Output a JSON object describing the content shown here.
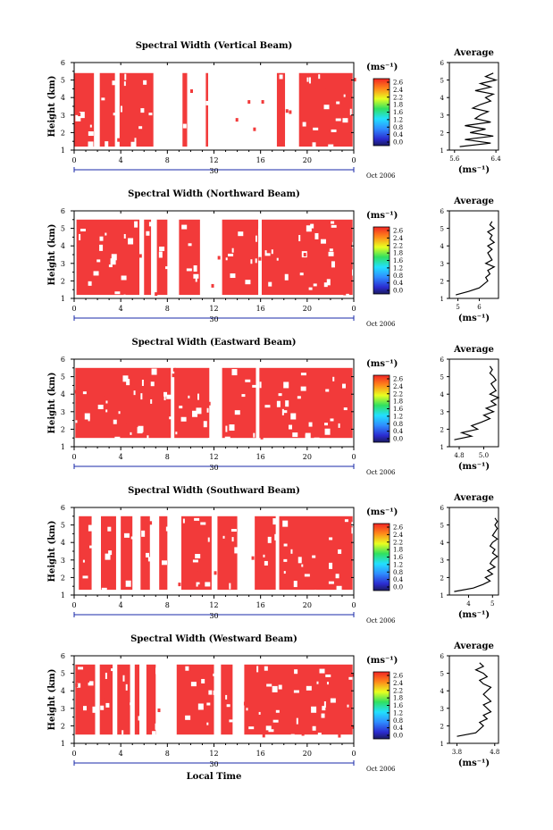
{
  "figure": {
    "xlabel": "Local Time",
    "date_label": "Oct 2006",
    "day_label": "30",
    "colorbar_unit": "(ms⁻¹)",
    "avg_title": "Average",
    "avg_unit": "(ms⁻¹)",
    "ylabel": "Height (km)"
  },
  "colors": {
    "data": "#f23a3a",
    "axis": "#000000",
    "background": "#ffffff",
    "axis_accent": "#1a2aa8"
  },
  "chart_data": [
    {
      "type": "heatmap",
      "title": "Spectral Width (Vertical Beam)",
      "ylabel": "Height (km)",
      "xlabel": "",
      "x_ticks": [
        "0",
        "4",
        "8",
        "12",
        "16",
        "20",
        "0"
      ],
      "y_ticks": [
        "1",
        "2",
        "3",
        "4",
        "5",
        "6"
      ],
      "xlim": [
        0,
        24
      ],
      "ylim": [
        1,
        6
      ],
      "data_height_range": [
        1.2,
        5.4
      ],
      "colorbar": {
        "ticks": [
          "2.6",
          "2.4",
          "2.2",
          "1.8",
          "1.6",
          "1.2",
          "0.8",
          "0.4",
          "0.0"
        ],
        "range": [
          0.0,
          2.6
        ]
      },
      "coverage": [
        [
          0.0,
          1.7
        ],
        [
          2.2,
          3.5
        ],
        [
          3.9,
          6.8
        ],
        [
          9.3,
          9.7
        ],
        [
          11.3,
          11.5
        ],
        [
          17.4,
          18.1
        ],
        [
          19.3,
          23.9
        ]
      ],
      "avg": {
        "xticks": [
          "5.6",
          "6.4"
        ],
        "xlim": [
          5.5,
          6.45
        ],
        "h": [
          1.2,
          1.4,
          1.6,
          1.8,
          2.0,
          2.2,
          2.4,
          2.6,
          2.8,
          3.0,
          3.2,
          3.4,
          3.6,
          3.8,
          4.0,
          4.2,
          4.4,
          4.6,
          4.8,
          5.0,
          5.2,
          5.4
        ],
        "v": [
          5.7,
          6.3,
          5.8,
          6.35,
          5.9,
          6.2,
          5.8,
          6.3,
          6.0,
          6.1,
          6.25,
          5.95,
          6.1,
          6.3,
          6.2,
          6.35,
          6.0,
          6.3,
          6.1,
          6.4,
          6.2,
          6.35
        ]
      }
    },
    {
      "type": "heatmap",
      "title": "Spectral Width (Northward Beam)",
      "ylabel": "Height (km)",
      "xlabel": "",
      "x_ticks": [
        "0",
        "4",
        "8",
        "12",
        "16",
        "20",
        "0"
      ],
      "y_ticks": [
        "1",
        "2",
        "3",
        "4",
        "5",
        "6"
      ],
      "xlim": [
        0,
        24
      ],
      "ylim": [
        1,
        6
      ],
      "data_height_range": [
        1.2,
        5.5
      ],
      "colorbar": {
        "ticks": [
          "2.6",
          "2.4",
          "2.2",
          "1.8",
          "1.6",
          "1.2",
          "0.8",
          "0.4",
          "0.0"
        ],
        "range": [
          0.0,
          2.6
        ]
      },
      "coverage": [
        [
          0.2,
          5.6
        ],
        [
          6.0,
          6.6
        ],
        [
          7.1,
          8.0
        ],
        [
          9.0,
          10.8
        ],
        [
          12.7,
          15.8
        ],
        [
          16.1,
          23.9
        ]
      ],
      "avg": {
        "xticks": [
          "5",
          "6"
        ],
        "xlim": [
          4.6,
          6.9
        ],
        "h": [
          1.2,
          1.4,
          1.6,
          1.8,
          2.0,
          2.2,
          2.4,
          2.6,
          2.8,
          3.0,
          3.2,
          3.4,
          3.6,
          3.8,
          4.0,
          4.2,
          4.4,
          4.6,
          4.8,
          5.0,
          5.2,
          5.4
        ],
        "v": [
          4.9,
          5.5,
          6.0,
          6.2,
          6.4,
          6.3,
          6.5,
          6.4,
          6.7,
          6.3,
          6.6,
          6.5,
          6.4,
          6.6,
          6.4,
          6.7,
          6.5,
          6.6,
          6.4,
          6.7,
          6.5,
          6.6
        ]
      }
    },
    {
      "type": "heatmap",
      "title": "Spectral Width (Eastward Beam)",
      "ylabel": "Height (km)",
      "xlabel": "",
      "x_ticks": [
        "0",
        "4",
        "8",
        "12",
        "16",
        "20",
        "0"
      ],
      "y_ticks": [
        "1",
        "2",
        "3",
        "4",
        "5",
        "6"
      ],
      "xlim": [
        0,
        24
      ],
      "ylim": [
        1,
        6
      ],
      "data_height_range": [
        1.5,
        5.5
      ],
      "colorbar": {
        "ticks": [
          "2.6",
          "2.4",
          "2.2",
          "1.8",
          "1.6",
          "1.2",
          "0.8",
          "0.4",
          "0.0"
        ],
        "range": [
          0.0,
          2.6
        ]
      },
      "coverage": [
        [
          0.1,
          8.3
        ],
        [
          8.6,
          11.6
        ],
        [
          12.7,
          15.6
        ],
        [
          15.9,
          23.9
        ]
      ],
      "avg": {
        "xticks": [
          "4.8",
          "5.0"
        ],
        "xlim": [
          4.72,
          5.12
        ],
        "h": [
          1.4,
          1.6,
          1.8,
          2.0,
          2.2,
          2.4,
          2.6,
          2.8,
          3.0,
          3.2,
          3.4,
          3.6,
          3.8,
          4.0,
          4.2,
          4.4,
          4.6,
          4.8,
          5.0,
          5.2,
          5.4,
          5.6
        ],
        "v": [
          4.76,
          4.9,
          4.82,
          4.95,
          4.9,
          4.98,
          5.05,
          5.0,
          5.08,
          5.02,
          5.1,
          5.06,
          5.12,
          5.05,
          5.1,
          5.08,
          5.06,
          5.1,
          5.08,
          5.05,
          5.07,
          5.05
        ]
      }
    },
    {
      "type": "heatmap",
      "title": "Spectral Width (Southward Beam)",
      "ylabel": "Height (km)",
      "xlabel": "",
      "x_ticks": [
        "0",
        "4",
        "8",
        "12",
        "16",
        "20",
        "0"
      ],
      "y_ticks": [
        "1",
        "2",
        "3",
        "4",
        "5",
        "6"
      ],
      "xlim": [
        0,
        24
      ],
      "ylim": [
        1,
        6
      ],
      "data_height_range": [
        1.3,
        5.5
      ],
      "colorbar": {
        "ticks": [
          "2.6",
          "2.4",
          "2.2",
          "1.8",
          "1.6",
          "1.2",
          "0.8",
          "0.4",
          "0.0"
        ],
        "range": [
          0.0,
          2.6
        ]
      },
      "coverage": [
        [
          0.4,
          1.5
        ],
        [
          2.3,
          3.6
        ],
        [
          4.0,
          5.0
        ],
        [
          5.7,
          6.5
        ],
        [
          7.3,
          8.0
        ],
        [
          9.2,
          11.8
        ],
        [
          12.3,
          14.0
        ],
        [
          15.5,
          17.3
        ],
        [
          17.6,
          23.9
        ]
      ],
      "avg": {
        "xticks": [
          "4",
          "5"
        ],
        "xlim": [
          3.2,
          5.25
        ],
        "h": [
          1.2,
          1.4,
          1.6,
          1.8,
          2.0,
          2.2,
          2.4,
          2.6,
          2.8,
          3.0,
          3.2,
          3.4,
          3.6,
          3.8,
          4.0,
          4.2,
          4.4,
          4.6,
          4.8,
          5.0,
          5.2,
          5.4
        ],
        "v": [
          3.4,
          4.2,
          4.6,
          4.9,
          4.7,
          5.0,
          4.8,
          5.1,
          4.9,
          5.0,
          5.2,
          5.0,
          5.1,
          4.9,
          5.0,
          5.2,
          5.0,
          5.1,
          5.2,
          5.1,
          5.2,
          5.1
        ]
      }
    },
    {
      "type": "heatmap",
      "title": "Spectral Width (Westward Beam)",
      "ylabel": "Height (km)",
      "xlabel": "Local Time",
      "x_ticks": [
        "0",
        "4",
        "8",
        "12",
        "16",
        "20",
        "0"
      ],
      "y_ticks": [
        "1",
        "2",
        "3",
        "4",
        "5",
        "6"
      ],
      "xlim": [
        0,
        24
      ],
      "ylim": [
        1,
        6
      ],
      "data_height_range": [
        1.5,
        5.5
      ],
      "colorbar": {
        "ticks": [
          "2.6",
          "2.4",
          "2.2",
          "1.8",
          "1.6",
          "1.2",
          "0.8",
          "0.4",
          "0.0"
        ],
        "range": [
          0.0,
          2.6
        ]
      },
      "coverage": [
        [
          0.1,
          1.8
        ],
        [
          2.2,
          3.3
        ],
        [
          3.7,
          4.8
        ],
        [
          5.2,
          5.6
        ],
        [
          6.2,
          7.0
        ],
        [
          8.8,
          12.0
        ],
        [
          12.6,
          13.6
        ],
        [
          14.6,
          23.9
        ]
      ],
      "avg": {
        "xticks": [
          "3.8",
          "4.8"
        ],
        "xlim": [
          3.6,
          4.9
        ],
        "h": [
          1.4,
          1.6,
          1.8,
          2.0,
          2.2,
          2.4,
          2.6,
          2.8,
          3.0,
          3.2,
          3.4,
          3.6,
          3.8,
          4.0,
          4.2,
          4.4,
          4.6,
          4.8,
          5.0,
          5.2,
          5.4,
          5.6
        ],
        "v": [
          3.8,
          4.3,
          4.4,
          4.5,
          4.4,
          4.6,
          4.5,
          4.7,
          4.6,
          4.5,
          4.7,
          4.6,
          4.5,
          4.6,
          4.7,
          4.5,
          4.4,
          4.6,
          4.5,
          4.3,
          4.5,
          4.4
        ]
      }
    }
  ]
}
